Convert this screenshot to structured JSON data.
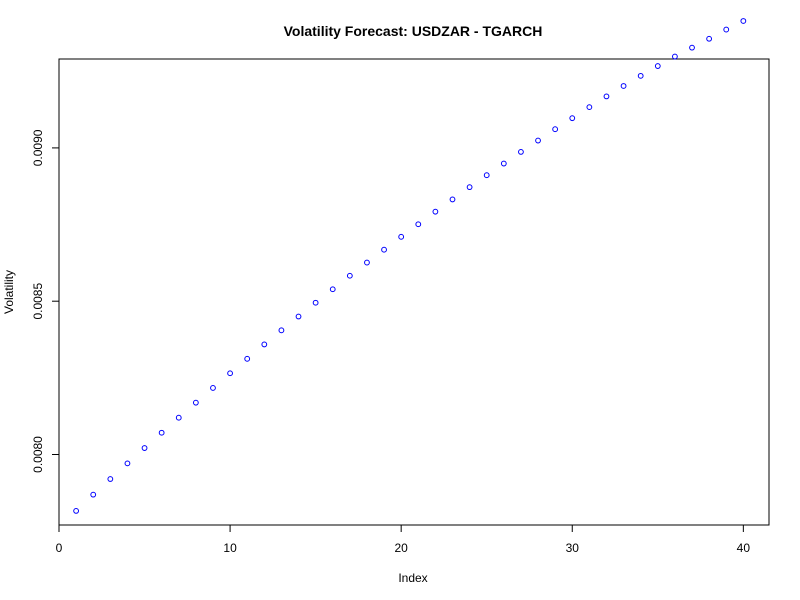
{
  "chart_data": {
    "type": "scatter",
    "title": "Volatility Forecast: USDZAR - TGARCH",
    "xlabel": "Index",
    "ylabel": "Volatility",
    "xlim": [
      0,
      41.5
    ],
    "ylim": [
      0.00777,
      0.00929
    ],
    "x_ticks": [
      0,
      10,
      20,
      30,
      40
    ],
    "x_tick_labels": [
      "0",
      "10",
      "20",
      "30",
      "40"
    ],
    "y_ticks": [
      0.008,
      0.0085,
      0.009
    ],
    "y_tick_labels": [
      "0.0080",
      "0.0085",
      "0.0090"
    ],
    "grid": false,
    "legend": "none",
    "marker": "open-circle",
    "color": "#0000ff",
    "x": [
      1,
      2,
      3,
      4,
      5,
      6,
      7,
      8,
      9,
      10,
      11,
      12,
      13,
      14,
      15,
      16,
      17,
      18,
      19,
      20,
      21,
      22,
      23,
      24,
      25,
      26,
      27,
      28,
      29,
      30,
      31,
      32,
      33,
      34,
      35,
      36,
      37,
      38,
      39,
      40
    ],
    "y": [
      0.007816,
      0.007869,
      0.00792,
      0.007971,
      0.008021,
      0.008071,
      0.00812,
      0.008169,
      0.008217,
      0.008265,
      0.008312,
      0.008359,
      0.008405,
      0.00845,
      0.008495,
      0.008539,
      0.008583,
      0.008626,
      0.008668,
      0.00871,
      0.008751,
      0.008792,
      0.008832,
      0.008872,
      0.008911,
      0.008949,
      0.008987,
      0.009024,
      0.009061,
      0.009097,
      0.009133,
      0.009168,
      0.009202,
      0.009235,
      0.009267,
      0.009298,
      0.009327,
      0.009356,
      0.009386,
      0.009414
    ]
  }
}
